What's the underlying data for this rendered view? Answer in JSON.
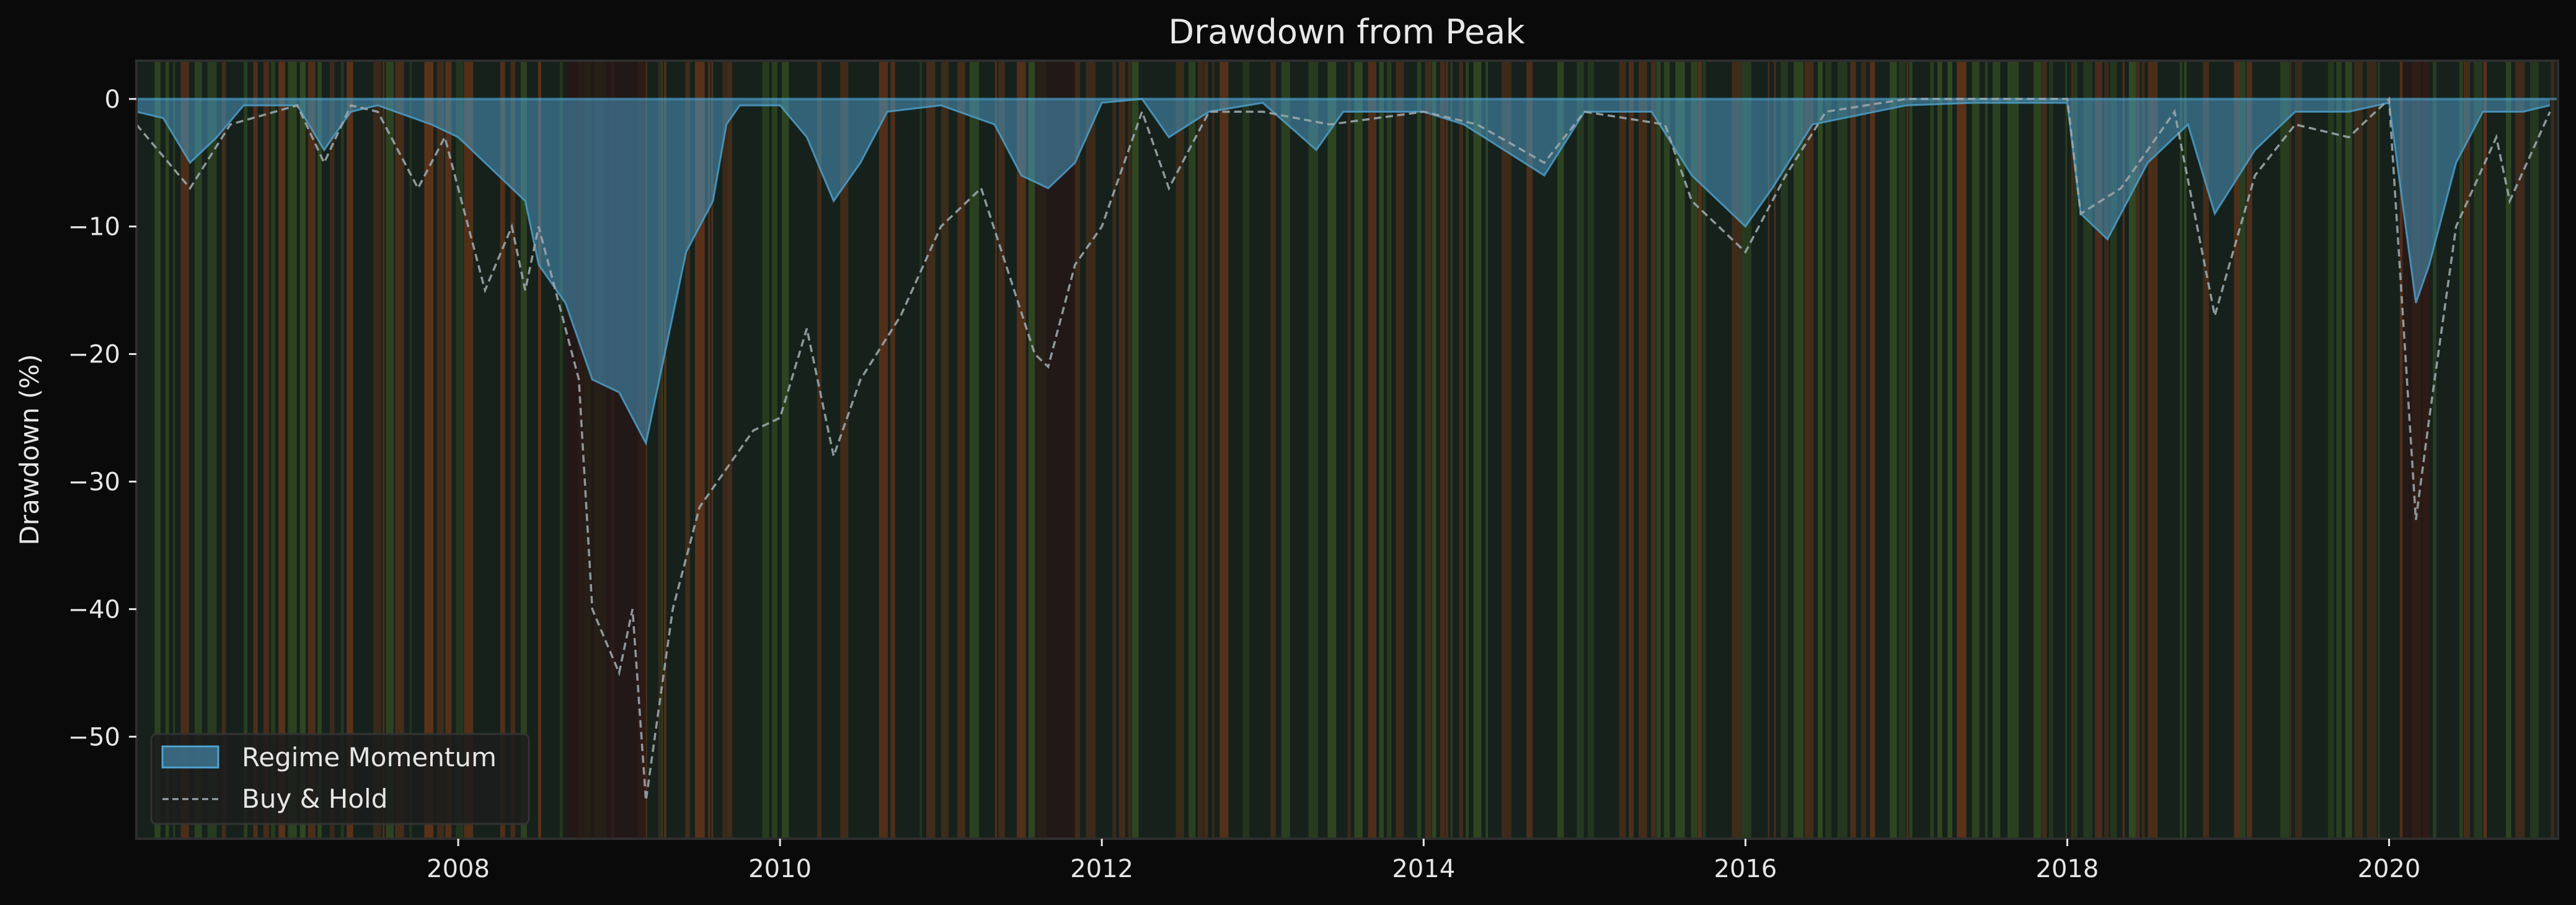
{
  "chart_data": {
    "type": "area",
    "title": "Drawdown from Peak",
    "xlabel": "",
    "ylabel": "Drawdown (%)",
    "xlim": [
      "2006-01",
      "2021-01"
    ],
    "ylim": [
      -58,
      3
    ],
    "x_ticks": [
      "2008",
      "2010",
      "2012",
      "2014",
      "2016",
      "2018",
      "2020"
    ],
    "y_ticks": [
      0,
      -10,
      -20,
      -30,
      -40,
      -50
    ],
    "grid": false,
    "legend_position": "lower-left",
    "background_regimes": {
      "colors": {
        "bull": "#3d5a24",
        "bear": "#7a3a18",
        "crisis": "#241717",
        "neutral": "#16211c"
      },
      "crisis_periods": [
        [
          "2008-09",
          "2009-03"
        ],
        [
          "2011-08",
          "2011-11"
        ],
        [
          "2020-02",
          "2020-04"
        ]
      ]
    },
    "series": [
      {
        "name": "Regime Momentum",
        "style": "filled-area",
        "color": "#4fa3cf",
        "points": [
          [
            "2006-01",
            -1
          ],
          [
            "2006-03",
            -1.5
          ],
          [
            "2006-05",
            -5
          ],
          [
            "2006-07",
            -3
          ],
          [
            "2006-09",
            -0.5
          ],
          [
            "2007-01",
            -0.5
          ],
          [
            "2007-03",
            -4
          ],
          [
            "2007-05",
            -1
          ],
          [
            "2007-07",
            -0.5
          ],
          [
            "2007-11",
            -2
          ],
          [
            "2008-01",
            -3
          ],
          [
            "2008-04",
            -6
          ],
          [
            "2008-06",
            -8
          ],
          [
            "2008-07",
            -13
          ],
          [
            "2008-09",
            -16
          ],
          [
            "2008-11",
            -22
          ],
          [
            "2009-01",
            -23
          ],
          [
            "2009-03",
            -27
          ],
          [
            "2009-04",
            -22
          ],
          [
            "2009-06",
            -12
          ],
          [
            "2009-08",
            -8
          ],
          [
            "2009-09",
            -2
          ],
          [
            "2009-10",
            -0.5
          ],
          [
            "2010-01",
            -0.5
          ],
          [
            "2010-03",
            -3
          ],
          [
            "2010-05",
            -8
          ],
          [
            "2010-07",
            -5
          ],
          [
            "2010-09",
            -1
          ],
          [
            "2011-01",
            -0.5
          ],
          [
            "2011-05",
            -2
          ],
          [
            "2011-07",
            -6
          ],
          [
            "2011-09",
            -7
          ],
          [
            "2011-11",
            -5
          ],
          [
            "2012-01",
            -0.3
          ],
          [
            "2012-04",
            0
          ],
          [
            "2012-06",
            -3
          ],
          [
            "2012-09",
            -1
          ],
          [
            "2013-01",
            -0.3
          ],
          [
            "2013-05",
            -4
          ],
          [
            "2013-07",
            -1
          ],
          [
            "2014-01",
            -1
          ],
          [
            "2014-04",
            -2
          ],
          [
            "2014-10",
            -6
          ],
          [
            "2015-01",
            -1
          ],
          [
            "2015-06",
            -1
          ],
          [
            "2015-09",
            -6
          ],
          [
            "2016-01",
            -10
          ],
          [
            "2016-03",
            -7
          ],
          [
            "2016-06",
            -2
          ],
          [
            "2017-01",
            -0.5
          ],
          [
            "2017-06",
            -0.3
          ],
          [
            "2018-01",
            -0.3
          ],
          [
            "2018-02",
            -9
          ],
          [
            "2018-04",
            -11
          ],
          [
            "2018-07",
            -5
          ],
          [
            "2018-10",
            -2
          ],
          [
            "2018-12",
            -9
          ],
          [
            "2019-03",
            -4
          ],
          [
            "2019-06",
            -1
          ],
          [
            "2019-10",
            -1
          ],
          [
            "2020-01",
            -0.3
          ],
          [
            "2020-03",
            -16
          ],
          [
            "2020-04",
            -13
          ],
          [
            "2020-06",
            -5
          ],
          [
            "2020-08",
            -1
          ],
          [
            "2020-11",
            -1
          ],
          [
            "2021-01",
            -0.5
          ]
        ]
      },
      {
        "name": "Buy & Hold",
        "style": "dashed-line",
        "color": "#9aa5ab",
        "points": [
          [
            "2006-01",
            -2
          ],
          [
            "2006-05",
            -7
          ],
          [
            "2006-08",
            -2
          ],
          [
            "2007-01",
            -0.5
          ],
          [
            "2007-03",
            -5
          ],
          [
            "2007-05",
            -0.5
          ],
          [
            "2007-07",
            -1
          ],
          [
            "2007-10",
            -7
          ],
          [
            "2007-12",
            -3
          ],
          [
            "2008-03",
            -15
          ],
          [
            "2008-05",
            -10
          ],
          [
            "2008-06",
            -15
          ],
          [
            "2008-07",
            -10
          ],
          [
            "2008-10",
            -22
          ],
          [
            "2008-11",
            -40
          ],
          [
            "2009-01",
            -45
          ],
          [
            "2009-02",
            -40
          ],
          [
            "2009-03",
            -55
          ],
          [
            "2009-05",
            -40
          ],
          [
            "2009-07",
            -32
          ],
          [
            "2009-11",
            -26
          ],
          [
            "2010-01",
            -25
          ],
          [
            "2010-03",
            -18
          ],
          [
            "2010-05",
            -28
          ],
          [
            "2010-07",
            -22
          ],
          [
            "2010-10",
            -17
          ],
          [
            "2011-01",
            -10
          ],
          [
            "2011-04",
            -7
          ],
          [
            "2011-08",
            -20
          ],
          [
            "2011-09",
            -21
          ],
          [
            "2011-11",
            -13
          ],
          [
            "2012-01",
            -10
          ],
          [
            "2012-04",
            -1
          ],
          [
            "2012-06",
            -7
          ],
          [
            "2012-09",
            -1
          ],
          [
            "2013-01",
            -1
          ],
          [
            "2013-06",
            -2
          ],
          [
            "2014-01",
            -1
          ],
          [
            "2014-05",
            -2
          ],
          [
            "2014-10",
            -5
          ],
          [
            "2015-01",
            -1
          ],
          [
            "2015-07",
            -2
          ],
          [
            "2015-09",
            -8
          ],
          [
            "2016-01",
            -12
          ],
          [
            "2016-04",
            -6
          ],
          [
            "2016-07",
            -1
          ],
          [
            "2017-01",
            0
          ],
          [
            "2018-01",
            0
          ],
          [
            "2018-02",
            -9
          ],
          [
            "2018-05",
            -7
          ],
          [
            "2018-09",
            -1
          ],
          [
            "2018-12",
            -17
          ],
          [
            "2019-03",
            -6
          ],
          [
            "2019-06",
            -2
          ],
          [
            "2019-10",
            -3
          ],
          [
            "2020-01",
            0
          ],
          [
            "2020-03",
            -33
          ],
          [
            "2020-04",
            -25
          ],
          [
            "2020-06",
            -10
          ],
          [
            "2020-09",
            -3
          ],
          [
            "2020-10",
            -8
          ],
          [
            "2021-01",
            -1
          ]
        ]
      }
    ]
  }
}
